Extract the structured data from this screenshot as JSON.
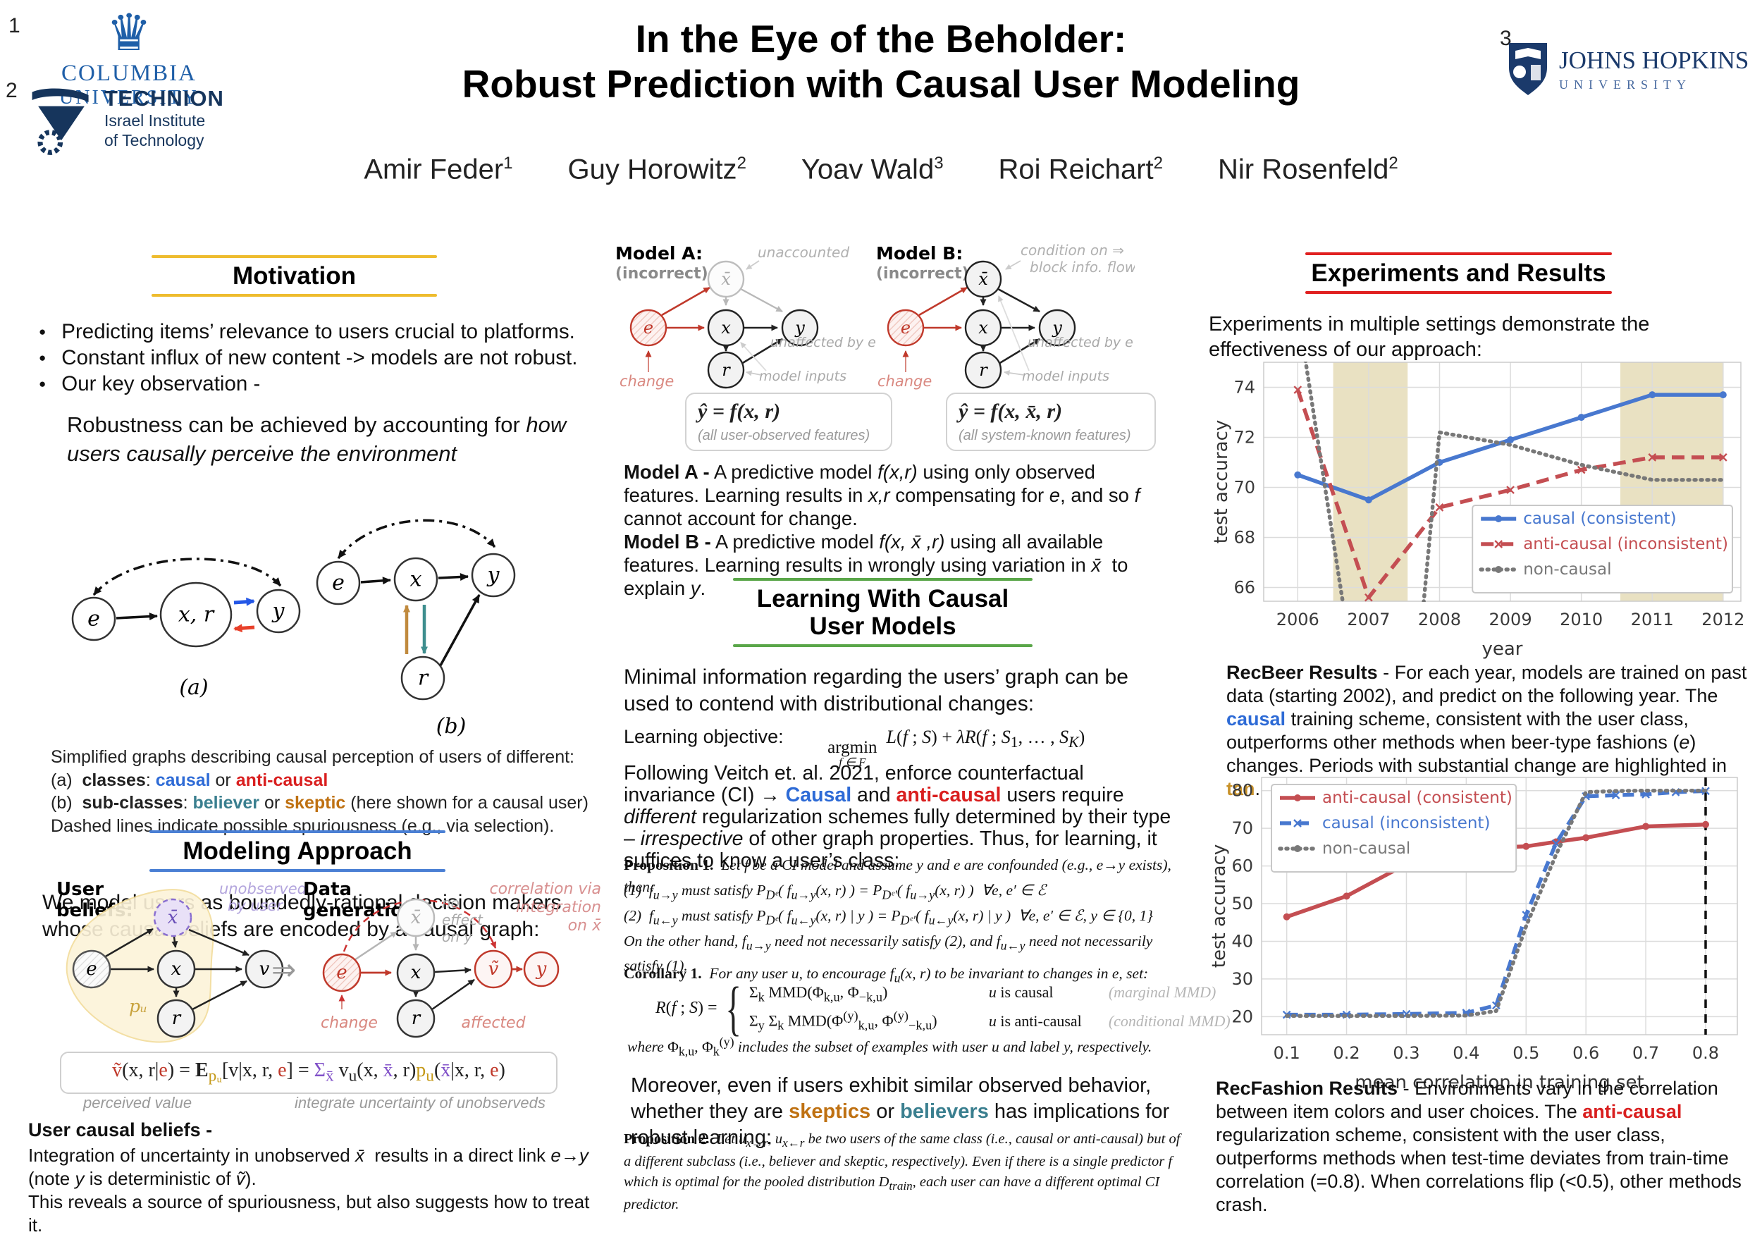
{
  "header": {
    "title_lines": [
      "In the Eye of the Beholder:",
      "Robust Prediction with Causal User Modeling"
    ],
    "authors": [
      {
        "name": "Amir Feder",
        "sup": "1"
      },
      {
        "name": "Guy Horowitz",
        "sup": "2"
      },
      {
        "name": "Yoav Wald",
        "sup": "3"
      },
      {
        "name": "Roi Reichart",
        "sup": "2"
      },
      {
        "name": "Nir Rosenfeld",
        "sup": "2"
      }
    ],
    "affil_markers": [
      "1",
      "2",
      "3"
    ],
    "logos": {
      "columbia": {
        "line1": "COLUMBIA",
        "line2": "UNIVERSITY"
      },
      "technion": {
        "line1": "TECHNION",
        "line2": "Israel Institute",
        "line3": "of Technology"
      },
      "jhu": {
        "line1": "JOHNS HOPKINS",
        "line2": "UNIVERSITY"
      }
    }
  },
  "glyphs": {
    "e": "e",
    "x": "x",
    "y": "y",
    "r": "r",
    "v": "v",
    "xr": "x, r",
    "xbar": "x̄",
    "vtilde": "ṽ",
    "pu": "pᵤ",
    "implies": "⇒",
    "a_label": "(a)",
    "b_label": "(b)"
  },
  "left": {
    "motivation": {
      "title": "Motivation",
      "bullets": [
        "Predicting items’ relevance to users crucial to platforms.",
        "Constant influx of new content -> models are not robust.",
        "Our key observation -"
      ],
      "statement_html": "Robustness can be achieved by accounting for <i>how users causally perceive the environment</i>"
    },
    "figure_ab": {
      "caption_lines_html": [
        "Simplified graphs describing causal perception of users of different:",
        "(a)&nbsp;&nbsp;<b>classes</b>: <span class='c-blue b'>causal</span> or <span class='c-red b'>anti-causal</span>",
        "(b)&nbsp;&nbsp;<b>sub-classes</b>: <span class='c-teal b'>believer</span> or <span class='c-orange b'>skeptic</span> (here shown for a causal user)",
        "Dashed lines indicate possible spuriousness (e.g., via selection)."
      ]
    },
    "modeling": {
      "title": "Modeling Approach",
      "intro": "We model users as boundedly-rational decision makers whose causal beliefs are encoded by a causal graph:",
      "diagram": {
        "user_beliefs_label": [
          "User",
          "beliefs:"
        ],
        "data_generation_label": [
          "Data",
          "generation:"
        ],
        "unobserved_by_user": [
          "unobserved",
          "by user"
        ],
        "correlation_note": [
          "correlation via",
          "integration",
          "on x̄"
        ],
        "no_effect_note": [
          "no",
          "effect",
          "on y"
        ],
        "change": "change",
        "affected": "affected"
      },
      "formula_html": "<span class='c-dred'>ṽ</span>(x, r|<span class='c-dred'>e</span>) = <b>E</b><sub><span class='c-gold'>pᵤ</span></sub>[v|x, r, <span class='c-dred'>e</span>] = <span class='c-purple'>Σ<sub>x̄</sub></span> v<sub>u</sub>(x, <span class='c-purple'>x̄</span>, r)<span class='c-gold'>p<sub>u</sub></span>(<span class='c-purple'>x̄</span>|x, r, <span class='c-dred'>e</span>)",
      "formula_sublabels": [
        "perceived value",
        "integrate uncertainty of unobserveds"
      ],
      "beliefs_heading": "User causal beliefs -",
      "beliefs_lines_html": [
        "Integration of uncertainty in unobserved <i>x̄</i>&nbsp; results in a direct link <i>e→y</i>",
        "(note <i>y</i> is deterministic of <i>ṽ</i>).",
        "This reveals a source of spuriousness, but also suggests how to treat it."
      ]
    }
  },
  "middle": {
    "models_fig": {
      "modelA_label": "Model A:",
      "modelB_label": "Model B:",
      "incorrect": "(incorrect)",
      "unaccounted": "unaccounted",
      "condition_note": [
        "condition on ⇒",
        "block info. flow"
      ],
      "unaffected": "unaffected by e",
      "model_inputs": "model inputs",
      "change": "change",
      "boxA_formula": "ŷ = f(x, r)",
      "boxA_note": "(all user-observed features)",
      "boxB_formula": "ŷ = f(x, x̄, r)",
      "boxB_note": "(all system-known features)"
    },
    "modelA_text_html": "<b>Model A -</b> A predictive model <i>f(x,r)</i> using only observed features. Learning results in <i>x,r</i> compensating for <i>e</i>, and so <i>f</i> cannot account for change.",
    "modelB_text_html": "<b>Model B -</b> A predictive model <i>f(x, x̄ ,r)</i> using all available features. Learning results in wrongly using variation in <i>x̄</i>&nbsp; to explain <i>y</i>.",
    "learning": {
      "title_lines": [
        "Learning With Causal",
        "User Models"
      ],
      "intro": "Minimal information regarding the users’ graph can be used to contend with distributional changes:",
      "objective_label": "Learning objective:",
      "objective_formula_html": "<span class='argmin'><span class='am-top'>argmin</span><span class='am-sub'>f ∈ F</span></span>&nbsp; <i>L</i>(<i>f</i> ; <i>S</i>) + <i>λR</i>(<i>f</i> ; <i>S</i><sub>1</sub>, … , <i>S<sub>K</sub></i>)",
      "veitch_html": "Following Veitch et. al. 2021, enforce counterfactual invariance (CI) → <span class='c-blue b'>Causal</span> and <span class='c-red b'>anti-causal</span> users require <i>different</i> regularization schemes fully determined by their type – <i>irrespective</i> of other graph properties. Thus, for learning, it suffices to know a user’s class:",
      "prop1_head_html": "<b>Proposition 1.</b>&nbsp; <i>Let f be a CI model and assume y and e are confounded (e.g., e→y exists), then:</i>",
      "prop1_eq1_html": "<i>(1)&nbsp; f<sub>u→y</sub> must satisfy P<sub>Dᵉ</sub>( f<sub>u→y</sub>(x, r) ) = P<sub>Dᵉ′</sub>( f<sub>u→y</sub>(x, r) )&nbsp; ∀e, e′ ∈ ℰ</i>",
      "prop1_eq2_html": "<i>(2)&nbsp; f<sub>u←y</sub> must satisfy P<sub>Dᵉ</sub>( f<sub>u←y</sub>(x, r) | y ) = P<sub>Dᵉ′</sub>( f<sub>u←y</sub>(x, r) | y )&nbsp; ∀e, e′ ∈ ℰ, y ∈ {0, 1}</i>",
      "prop1_tail_html": "<i>On the other hand, f<sub>u→y</sub> need not necessarily satisfy (2), and f<sub>u←y</sub> need not necessarily satisfy (1).</i>",
      "cor1_head_html": "<b>Corollary 1.</b>&nbsp; <i>For any user u, to encourage f<sub>u</sub>(x, r) to be invariant to changes in e, set:</i>",
      "cor1_lhs_html": "<i>R</i>(<i>f</i> ; <i>S</i>) =",
      "cor1_rows": [
        {
          "formula_html": "Σ<sub>k</sub> MMD(Φ<sub>k,u</sub>, Φ<sub>−k,u</sub>)",
          "cond_html": "<i>u</i> is causal",
          "note": "(marginal MMD)"
        },
        {
          "formula_html": "Σ<sub>y</sub> Σ<sub>k</sub> MMD(Φ<sup>(y)</sup><sub>k,u</sub>, Φ<sup>(y)</sup><sub>−k,u</sub>)",
          "cond_html": "<i>u</i> is anti-causal",
          "note": "(conditional MMD)"
        }
      ],
      "cor1_where_html": "<i>where</i> Φ<sub>k,u</sub>, Φ<sub>k</sub><sup>(y)</sup> <i>includes the subset of examples with user u and label y, respectively.</i>",
      "moreover_html": "Moreover, even if users exhibit similar observed behavior, whether they are <span class='c-orange b'>skeptics</span> or <span class='c-teal b'>believers</span> has implications for robust learning:",
      "prop2_html": "<b>Proposition 2.</b>&nbsp; <i>Let u<sub>x→r</sub>, u<sub>x←r</sub> be two users of the same class (i.e., causal or anti-causal) but of a different subclass (i.e., believer and skeptic, respectively). Even if there is a single predictor f which is optimal for the pooled distribution D<sub>train</sub>, each user can have a different optimal CI predictor.</i>"
    }
  },
  "right": {
    "experiments_title": "Experiments and Results",
    "intro": "Experiments in multiple settings demonstrate the effectiveness of our approach:",
    "recbeer_caption_html": "<b>RecBeer Results</b> - For each year, models are trained on past data (starting 2002), and predict on the following year. The <span class='c-blue b'>causal</span> training scheme, consistent with the user class, outperforms other methods when beer-type fashions (<i>e</i>) changes. Periods with substantial change are highlighted in <span class='c-tan b'>tan</span>.",
    "recfashion_caption_html": "<b>RecFashion Results</b> - Environments vary in the correlation between item colors and user choices. The <span class='c-red b'>anti-causal</span> regularization scheme, consistent with the user class, outperforms methods when test-time deviates from train-time correlation (=0.8). When correlations flip (&lt;0.5), other methods crash."
  },
  "chart_data": [
    {
      "name": "RecBeer",
      "type": "line",
      "xlabel": "year",
      "ylabel": "test accuracy",
      "xlim": [
        2005.52,
        2012.25
      ],
      "ylim": [
        65.45,
        75.0
      ],
      "xticks": [
        2006,
        2007,
        2008,
        2009,
        2010,
        2011,
        2012
      ],
      "yticks": [
        66,
        68,
        70,
        72,
        74
      ],
      "grid": true,
      "legend_position": "bottom-right",
      "bands": [
        {
          "x0": 2006.5,
          "x1": 2007.55,
          "color": "#e9e1c2"
        },
        {
          "x0": 2010.55,
          "x1": 2012.0,
          "color": "#e9e1c2"
        }
      ],
      "series": [
        {
          "name": "causal (consistent)",
          "color": "#4878cf",
          "dash": null,
          "marker": "dot",
          "width": 5.5,
          "x": [
            2006,
            2007,
            2008,
            2009,
            2010,
            2011,
            2012
          ],
          "y": [
            70.5,
            69.5,
            71.0,
            71.9,
            72.8,
            73.7,
            73.7
          ]
        },
        {
          "name": "anti-causal (inconsistent)",
          "color": "#c44e52",
          "dash": "18 10",
          "marker": "x",
          "width": 5.5,
          "x": [
            2006,
            2007,
            2008,
            2009,
            2010,
            2011,
            2012
          ],
          "y": [
            73.9,
            65.6,
            69.2,
            69.9,
            70.7,
            71.2,
            71.2
          ]
        },
        {
          "name": "non-causal",
          "color": "#787878",
          "dash": "2 7",
          "marker": null,
          "width": 5.5,
          "linecap": "round",
          "x": [
            2006.08,
            2006.68,
            2007.75,
            2008,
            2009,
            2010,
            2011,
            2012
          ],
          "y": [
            75.6,
            64.6,
            64.6,
            72.2,
            71.7,
            70.9,
            70.3,
            70.3
          ]
        }
      ]
    },
    {
      "name": "RecFashion",
      "type": "line",
      "xlabel": "mean correlation in training set",
      "ylabel": "test accuracy",
      "xlim": [
        0.058,
        0.853
      ],
      "ylim": [
        15.2,
        83.5
      ],
      "xticks": [
        0.1,
        0.2,
        0.3,
        0.4,
        0.5,
        0.6,
        0.7,
        0.8
      ],
      "yticks": [
        20,
        30,
        40,
        50,
        60,
        70,
        80
      ],
      "grid": true,
      "legend_position": "top-left",
      "vlines": [
        {
          "x": 0.8,
          "color": "#111111",
          "dash": "12 9",
          "width": 3.5
        }
      ],
      "series": [
        {
          "name": "anti-causal (consistent)",
          "color": "#c44e52",
          "dash": null,
          "marker": "dot",
          "width": 5.5,
          "x": [
            0.1,
            0.2,
            0.3,
            0.4,
            0.5,
            0.55,
            0.6,
            0.7,
            0.8
          ],
          "y": [
            46.5,
            52,
            60.5,
            64.7,
            65.2,
            66.4,
            67.5,
            70.5,
            71
          ]
        },
        {
          "name": "causal (inconsistent)",
          "color": "#4878cf",
          "dash": "16 9",
          "marker": "x",
          "width": 5.5,
          "x": [
            0.1,
            0.2,
            0.3,
            0.4,
            0.45,
            0.5,
            0.55,
            0.6,
            0.65,
            0.7,
            0.75,
            0.8
          ],
          "y": [
            20.5,
            20.5,
            20.7,
            21,
            23,
            47,
            66,
            78.5,
            78.8,
            79,
            79.6,
            79.9
          ]
        },
        {
          "name": "non-causal",
          "color": "#787878",
          "dash": "2 7",
          "marker": null,
          "width": 5.5,
          "linecap": "round",
          "x": [
            0.1,
            0.2,
            0.3,
            0.4,
            0.45,
            0.5,
            0.55,
            0.6,
            0.65,
            0.7,
            0.75,
            0.8
          ],
          "y": [
            20.2,
            20.2,
            20.2,
            20.3,
            21.5,
            44,
            63,
            79.6,
            79.9,
            80,
            80,
            80
          ]
        }
      ]
    }
  ]
}
